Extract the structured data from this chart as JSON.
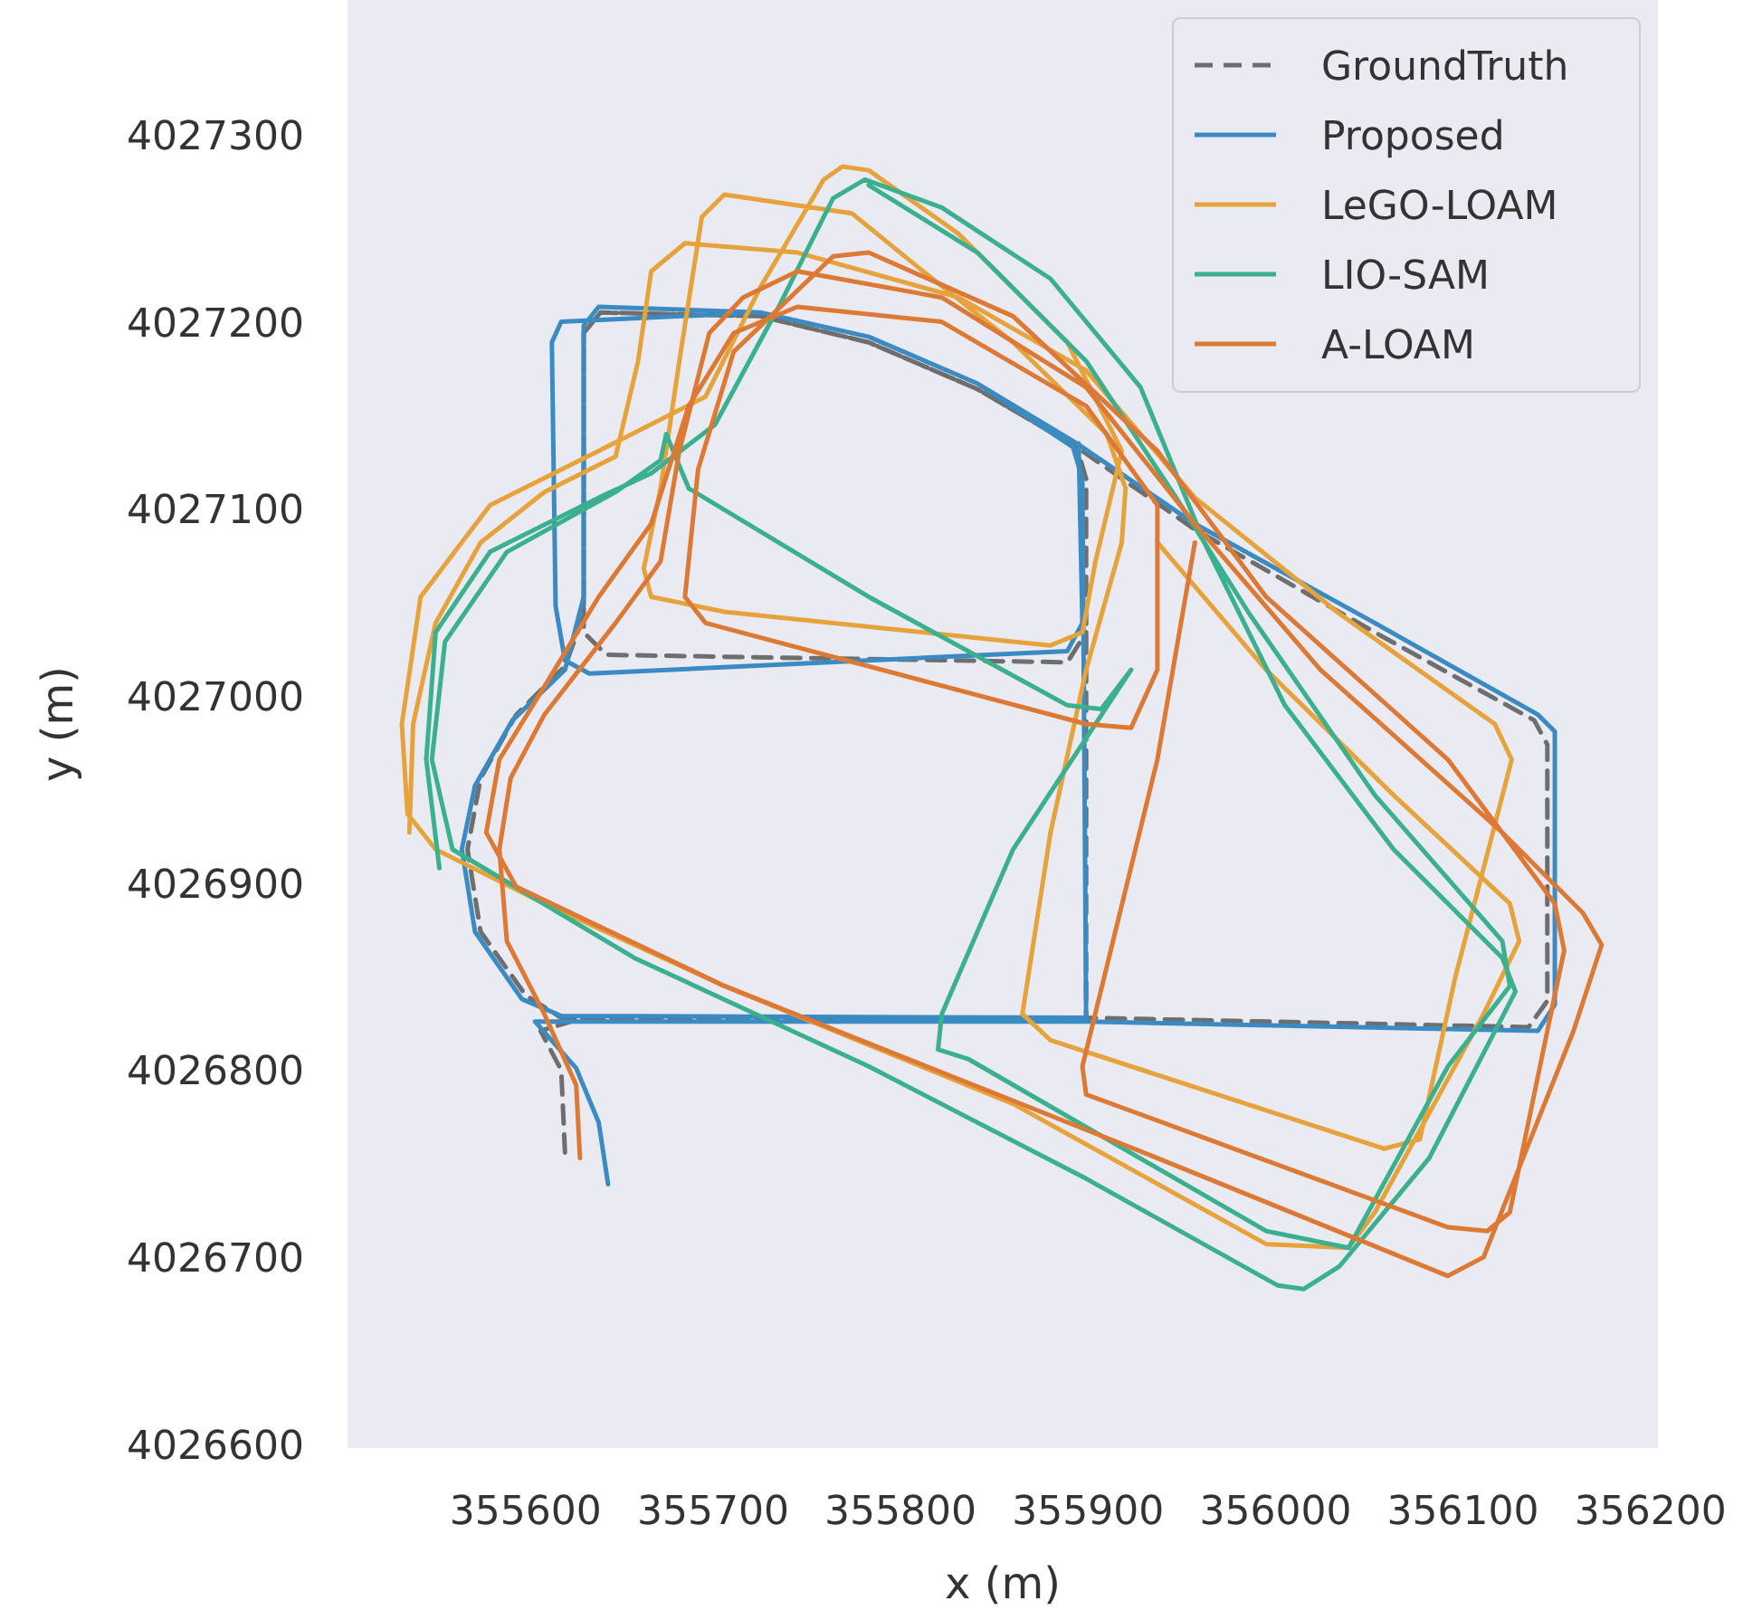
{
  "chart_data": {
    "type": "line",
    "xlabel": "x (m)",
    "ylabel": "y (m)",
    "xlim": [
      355505,
      356204
    ],
    "ylim": [
      4026598,
      4027372
    ],
    "xticks": [
      355600,
      355700,
      355800,
      355900,
      356000,
      356100,
      356200
    ],
    "yticks": [
      4026600,
      4026700,
      4026800,
      4026900,
      4027000,
      4027100,
      4027200,
      4027300
    ],
    "grid": false,
    "legend": "top right",
    "series": [
      {
        "name": "GroundTruth",
        "color": "#6e6e6e",
        "line_style": "dashed",
        "x": [
          355621,
          355619,
          355608,
          355631,
          355899,
          356135,
          356145,
          356145,
          356138,
          356053,
          355957,
          355894,
          355841,
          355783,
          355725,
          355640,
          355631,
          355631,
          355621,
          355595,
          355576,
          355569,
          355576,
          355600,
          355619,
          355899,
          355899,
          355894,
          355841,
          355783,
          355725,
          355640,
          355631,
          355631,
          355643,
          355889,
          355899
        ],
        "values": [
          4026756,
          4026800,
          4026821,
          4026828,
          4026828,
          4026823,
          4026837,
          4026974,
          4026987,
          4027034,
          4027089,
          4027133,
          4027164,
          4027189,
          4027203,
          4027205,
          4027194,
          4027043,
          4027016,
          4026990,
          4026956,
          4026918,
          4026874,
          4026840,
          4026828,
          4026828,
          4027116,
          4027133,
          4027164,
          4027189,
          4027203,
          4027205,
          4027194,
          4027034,
          4027022,
          4027018,
          4027034
        ]
      },
      {
        "name": "Proposed",
        "color": "#3b8bc3",
        "line_style": "solid",
        "x": [
          355644,
          355639,
          355627,
          355605,
          355631,
          355899,
          356140,
          356149,
          356149,
          356140,
          356053,
          355957,
          355894,
          355841,
          355783,
          355725,
          355639,
          355631,
          355631,
          355621,
          355593,
          355573,
          355566,
          355573,
          355598,
          355619,
          355899,
          355897,
          355892,
          355841,
          355783,
          355725,
          355619,
          355614,
          355616,
          355621,
          355634,
          355889,
          355897,
          355895
        ],
        "values": [
          4026739,
          4026772,
          4026801,
          4026826,
          4026826,
          4026826,
          4026821,
          4026835,
          4026981,
          4026990,
          4027039,
          4027092,
          4027135,
          4027167,
          4027192,
          4027205,
          4027208,
          4027198,
          4027053,
          4027014,
          4026987,
          4026952,
          4026918,
          4026874,
          4026838,
          4026829,
          4026828,
          4027116,
          4027133,
          4027167,
          4027192,
          4027205,
          4027200,
          4027189,
          4027048,
          4027019,
          4027012,
          4027024,
          4027039,
          4027135
        ]
      },
      {
        "name": "LeGO-LOAM",
        "color": "#e6a33c",
        "line_style": "solid",
        "x": [
          355538,
          355540,
          355552,
          355576,
          355610,
          355648,
          355660,
          355667,
          355685,
          355745,
          355831,
          355899,
          355957,
          356034,
          356117,
          356126,
          356096,
          356077,
          356058,
          355880,
          355865,
          355880,
          355899,
          355918,
          355920,
          355910,
          355860,
          355812,
          355774,
          355706,
          355694,
          355682,
          355672,
          355663,
          355667,
          355706,
          355880,
          355897,
          355904,
          355918,
          355889,
          355831,
          355783,
          355769,
          355759,
          355725,
          355696,
          355639,
          355581,
          355544,
          355534,
          355537,
          355552,
          355610,
          355706,
          355860,
          355995,
          356039,
          356053,
          356111,
          356130,
          356125,
          356063,
          355995,
          355937
        ],
        "values": [
          4026927,
          4026985,
          4027039,
          4027082,
          4027109,
          4027128,
          4027179,
          4027227,
          4027242,
          4027237,
          4027213,
          4027174,
          4027106,
          4027044,
          4026985,
          4026966,
          4026850,
          4026763,
          4026758,
          4026816,
          4026830,
          4026927,
          4027014,
          4027082,
          4027111,
          4027140,
          4027189,
          4027227,
          4027258,
          4027268,
          4027256,
          4027179,
          4027111,
          4027068,
          4027053,
          4027045,
          4027027,
          4027034,
          4027072,
          4027131,
          4027189,
          4027247,
          4027281,
          4027283,
          4027276,
          4027218,
          4027160,
          4027131,
          4027102,
          4027053,
          4026985,
          4026937,
          4026918,
          4026889,
          4026845,
          4026782,
          4026707,
          4026705,
          4026724,
          4026830,
          4026869,
          4026889,
          4026947,
          4027014,
          4027082
        ]
      },
      {
        "name": "LIO-SAM",
        "color": "#3bb08e",
        "line_style": "solid",
        "x": [
          355554,
          355547,
          355552,
          355581,
          355639,
          355667,
          355701,
          355735,
          355764,
          355781,
          355822,
          355880,
          355928,
          355962,
          356005,
          356063,
          356121,
          356128,
          356082,
          356034,
          356015,
          356001,
          355899,
          355783,
          355658,
          355561,
          355550,
          355557,
          355590,
          355648,
          355672,
          355675,
          355687,
          355783,
          355889,
          355907,
          355923,
          355860,
          355822,
          355820,
          355836,
          355995,
          356039,
          356092,
          356125,
          356121,
          356053,
          355986,
          355947,
          355899,
          355841,
          355783
        ],
        "values": [
          4026908,
          4026966,
          4027034,
          4027077,
          4027106,
          4027119,
          4027145,
          4027208,
          4027266,
          4027276,
          4027261,
          4027223,
          4027165,
          4027082,
          4026995,
          4026918,
          4026860,
          4026842,
          4026753,
          4026695,
          4026683,
          4026685,
          4026742,
          4026802,
          4026860,
          4026918,
          4026966,
          4027029,
          4027077,
          4027109,
          4027126,
          4027140,
          4027111,
          4027053,
          4026995,
          4026993,
          4027014,
          4026918,
          4026830,
          4026811,
          4026806,
          4026714,
          4026705,
          4026802,
          4026845,
          4026869,
          4026947,
          4027044,
          4027106,
          4027179,
          4027237,
          4027273
        ]
      },
      {
        "name": "A-LOAM",
        "color": "#dc7a35",
        "line_style": "solid",
        "x": [
          355629,
          355627,
          355610,
          355590,
          355586,
          355592,
          355610,
          355648,
          355672,
          355682,
          355698,
          355716,
          355745,
          355822,
          355899,
          355957,
          356024,
          356121,
          356164,
          356174,
          356159,
          356111,
          356092,
          355937,
          355706,
          355595,
          355579,
          355586,
          355610,
          355639,
          355667,
          355687,
          355711,
          355745,
          355822,
          355899,
          355937,
          355937,
          355923,
          355899,
          355696,
          355685,
          355692,
          355711,
          355764,
          355783,
          355860,
          355937,
          355995,
          356092,
          356149,
          356154,
          356145,
          356125,
          356113,
          356092,
          355918,
          355899,
          355897,
          355937,
          355952,
          355957
        ],
        "values": [
          4026753,
          4026792,
          4026830,
          4026869,
          4026918,
          4026956,
          4026990,
          4027039,
          4027072,
          4027131,
          4027194,
          4027213,
          4027227,
          4027213,
          4027165,
          4027092,
          4027014,
          4026927,
          4026884,
          4026867,
          4026821,
          4026700,
          4026690,
          4026753,
          4026845,
          4026898,
          4026927,
          4026966,
          4027005,
          4027053,
          4027092,
          4027155,
          4027194,
          4027208,
          4027200,
          4027155,
          4027102,
          4027014,
          4026983,
          4026985,
          4027039,
          4027053,
          4027121,
          4027184,
          4027235,
          4027237,
          4027203,
          4027131,
          4027053,
          4026966,
          4026889,
          4026864,
          4026821,
          4026724,
          4026714,
          4026716,
          4026780,
          4026787,
          4026802,
          4026966,
          4027053,
          4027082
        ]
      }
    ]
  }
}
